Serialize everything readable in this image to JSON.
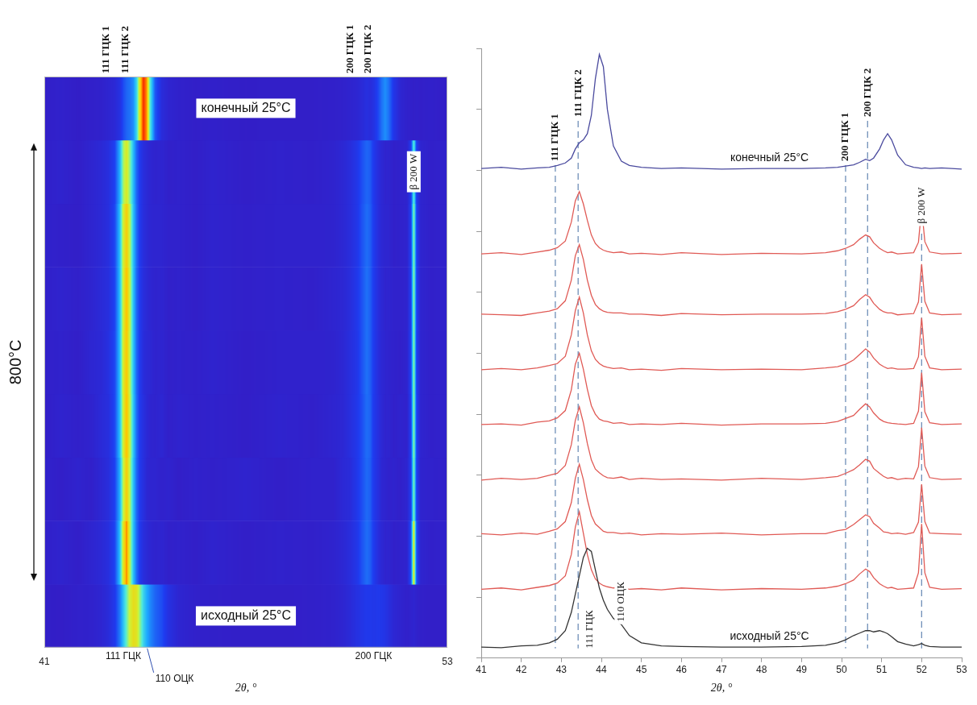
{
  "chart_data": {
    "type": "line",
    "x_label": "2θ, °",
    "xlim": [
      41,
      53
    ],
    "xticks": [
      41,
      42,
      43,
      44,
      45,
      46,
      47,
      48,
      49,
      50,
      51,
      52,
      53
    ],
    "ylim": [
      0,
      100
    ],
    "yticks": [
      0,
      10,
      20,
      30,
      40,
      50,
      60,
      70,
      80,
      90,
      100
    ],
    "tick_labels": "x",
    "grid": false,
    "x": [
      41,
      41.5,
      42,
      42.4,
      42.7,
      42.9,
      43.1,
      43.25,
      43.35,
      43.45,
      43.55,
      43.65,
      43.75,
      43.85,
      43.95,
      44.05,
      44.15,
      44.3,
      44.5,
      44.7,
      45,
      45.5,
      46,
      47,
      48,
      49,
      49.6,
      49.9,
      50.1,
      50.3,
      50.45,
      50.6,
      50.7,
      50.8,
      50.95,
      51.05,
      51.15,
      51.25,
      51.4,
      51.6,
      51.8,
      51.92,
      52,
      52.08,
      52.2,
      52.5,
      53
    ],
    "series": [
      {
        "name": "исходный 25°C",
        "color": "#333333",
        "heat_range": [
          1.5,
          24
        ],
        "values": [
          1.8,
          1.7,
          2.0,
          2.1,
          2.5,
          3.1,
          4.5,
          7.5,
          10.5,
          13.5,
          16.5,
          18.0,
          17.5,
          14.5,
          11.5,
          9.5,
          8.0,
          6.5,
          5.5,
          3.7,
          2.5,
          2.0,
          1.9,
          1.8,
          1.8,
          1.9,
          2.1,
          2.5,
          3.0,
          3.7,
          4.1,
          4.5,
          4.5,
          4.3,
          4.5,
          4.3,
          4.0,
          3.5,
          2.7,
          2.3,
          2.0,
          2.2,
          2.4,
          2.1,
          1.9,
          1.8,
          1.8
        ]
      },
      {
        "color": "#e05a55",
        "heat_range": [
          11,
          26
        ],
        "values": [
          11.3,
          11.5,
          11.2,
          11.6,
          11.9,
          12.3,
          13.5,
          17.0,
          21.5,
          24.0,
          20.5,
          17.0,
          14.5,
          13.0,
          12.3,
          11.9,
          11.7,
          11.5,
          11.6,
          11.3,
          11.4,
          11.2,
          11.5,
          11.2,
          11.4,
          11.3,
          11.5,
          11.8,
          12.2,
          12.8,
          13.8,
          14.6,
          14.2,
          13.2,
          12.2,
          11.8,
          11.5,
          11.6,
          11.3,
          11.4,
          11.5,
          14.0,
          22.0,
          14.0,
          11.6,
          11.3,
          11.4
        ]
      },
      {
        "color": "#e05a55",
        "heat_range": [
          20,
          35
        ],
        "values": [
          20.4,
          20.2,
          20.5,
          20.3,
          20.8,
          21.2,
          22.4,
          25.5,
          29.5,
          31.8,
          29.3,
          26.0,
          23.4,
          22.0,
          21.4,
          20.8,
          20.6,
          20.6,
          20.4,
          20.5,
          20.2,
          20.4,
          20.3,
          20.5,
          20.2,
          20.4,
          20.4,
          20.9,
          21.1,
          21.9,
          22.7,
          23.5,
          23.2,
          22.1,
          21.3,
          20.7,
          20.6,
          20.4,
          20.5,
          20.3,
          20.6,
          22.3,
          28.5,
          22.4,
          20.5,
          20.4,
          20.3
        ]
      },
      {
        "color": "#e05a55",
        "heat_range": [
          29,
          44
        ],
        "values": [
          29.2,
          29.5,
          29.3,
          29.5,
          30.0,
          30.3,
          31.6,
          35.0,
          39.0,
          41.2,
          38.6,
          35.2,
          32.5,
          31.0,
          30.4,
          29.9,
          29.6,
          29.5,
          29.7,
          29.3,
          29.5,
          29.3,
          29.4,
          29.2,
          29.5,
          29.3,
          29.6,
          29.8,
          30.3,
          30.9,
          31.7,
          32.6,
          32.3,
          31.1,
          30.3,
          29.8,
          29.5,
          29.6,
          29.3,
          29.5,
          29.4,
          31.4,
          37.8,
          31.5,
          29.6,
          29.3,
          29.4
        ]
      },
      {
        "color": "#e05a55",
        "heat_range": [
          38,
          53
        ],
        "values": [
          38.3,
          38.4,
          38.2,
          38.7,
          38.9,
          39.4,
          40.6,
          44.0,
          48.2,
          50.0,
          47.4,
          44.1,
          41.4,
          40.0,
          39.2,
          38.9,
          38.8,
          38.5,
          38.6,
          38.3,
          38.4,
          38.3,
          38.5,
          38.2,
          38.4,
          38.4,
          38.5,
          38.8,
          39.3,
          39.8,
          40.8,
          41.7,
          41.2,
          40.2,
          39.2,
          38.8,
          38.6,
          38.5,
          38.4,
          38.3,
          38.5,
          40.5,
          46.8,
          40.4,
          38.6,
          38.3,
          38.4
        ]
      },
      {
        "color": "#e05a55",
        "heat_range": [
          47,
          62
        ],
        "values": [
          47.3,
          47.5,
          47.3,
          47.6,
          48.0,
          48.3,
          49.5,
          53.0,
          57.0,
          59.2,
          56.6,
          53.0,
          50.4,
          49.0,
          48.3,
          47.9,
          47.7,
          47.5,
          47.6,
          47.3,
          47.4,
          47.2,
          47.5,
          47.3,
          47.4,
          47.3,
          47.6,
          47.8,
          48.2,
          48.9,
          49.8,
          50.7,
          50.2,
          49.2,
          48.2,
          47.8,
          47.5,
          47.6,
          47.4,
          47.4,
          47.5,
          49.4,
          55.8,
          49.5,
          47.6,
          47.3,
          47.4
        ]
      },
      {
        "color": "#e05a55",
        "heat_range": [
          56,
          71
        ],
        "values": [
          56.4,
          56.3,
          56.2,
          56.6,
          56.9,
          57.3,
          58.6,
          62.0,
          66.0,
          67.8,
          65.4,
          62.0,
          59.5,
          58.0,
          57.3,
          56.9,
          56.7,
          56.6,
          56.6,
          56.4,
          56.4,
          56.2,
          56.5,
          56.3,
          56.4,
          56.4,
          56.5,
          56.8,
          57.2,
          57.8,
          58.8,
          59.6,
          59.2,
          58.2,
          57.2,
          56.8,
          56.6,
          56.6,
          56.3,
          56.4,
          56.5,
          58.4,
          64.6,
          58.5,
          56.6,
          56.3,
          56.4
        ]
      },
      {
        "color": "#e05a55",
        "heat_range": [
          66,
          81
        ],
        "values": [
          66.3,
          66.5,
          66.2,
          66.6,
          66.9,
          67.3,
          68.4,
          71.5,
          75.0,
          76.5,
          74.5,
          71.8,
          69.4,
          68.0,
          67.3,
          66.9,
          66.7,
          66.5,
          66.6,
          66.3,
          66.4,
          66.2,
          66.5,
          66.2,
          66.4,
          66.3,
          66.5,
          66.8,
          67.2,
          67.8,
          68.7,
          69.4,
          69.1,
          68.1,
          67.2,
          66.8,
          66.5,
          66.6,
          66.3,
          66.4,
          66.5,
          68.2,
          73.8,
          68.3,
          66.6,
          66.3,
          66.4
        ]
      },
      {
        "name": "конечный 25°C",
        "color": "#4a4a9e",
        "heat_range": [
          80,
          100
        ],
        "values": [
          80.3,
          80.5,
          80.2,
          80.4,
          80.5,
          80.8,
          81.2,
          82.0,
          83.5,
          84.5,
          85.0,
          86.0,
          89.0,
          95.0,
          99.0,
          97.0,
          90.0,
          84.0,
          81.5,
          80.8,
          80.5,
          80.3,
          80.4,
          80.2,
          80.3,
          80.3,
          80.4,
          80.5,
          80.7,
          80.9,
          81.3,
          81.8,
          81.6,
          82.0,
          83.5,
          85.0,
          86.0,
          85.0,
          82.5,
          80.9,
          80.5,
          80.4,
          80.3,
          80.4,
          80.3,
          80.4,
          80.2
        ]
      }
    ],
    "markers": [
      {
        "label": "111 ГЦК 1",
        "x": 42.85
      },
      {
        "label": "111 ГЦК 2",
        "x": 43.42
      },
      {
        "label": "200 ГЦК 1",
        "x": 50.1
      },
      {
        "label": "200 ГЦК 2",
        "x": 50.65
      }
    ],
    "w_marker": {
      "label": "β 200 W",
      "x": 52.0
    },
    "annotations": [
      {
        "text": "111 ГЦК",
        "x": 43.7
      },
      {
        "text": "110 ОЦК",
        "x": 44.5
      }
    ],
    "heatmap": {
      "xlim": [
        41,
        53
      ],
      "xticks": [
        41,
        53
      ],
      "span_label": "800°C",
      "labels_below": [
        {
          "text": "111 ГЦК",
          "x": 43.35
        },
        {
          "text": "110 ОЦК",
          "x": 44.4
        },
        {
          "text": "200 ГЦК",
          "x": 50.8
        }
      ]
    }
  }
}
